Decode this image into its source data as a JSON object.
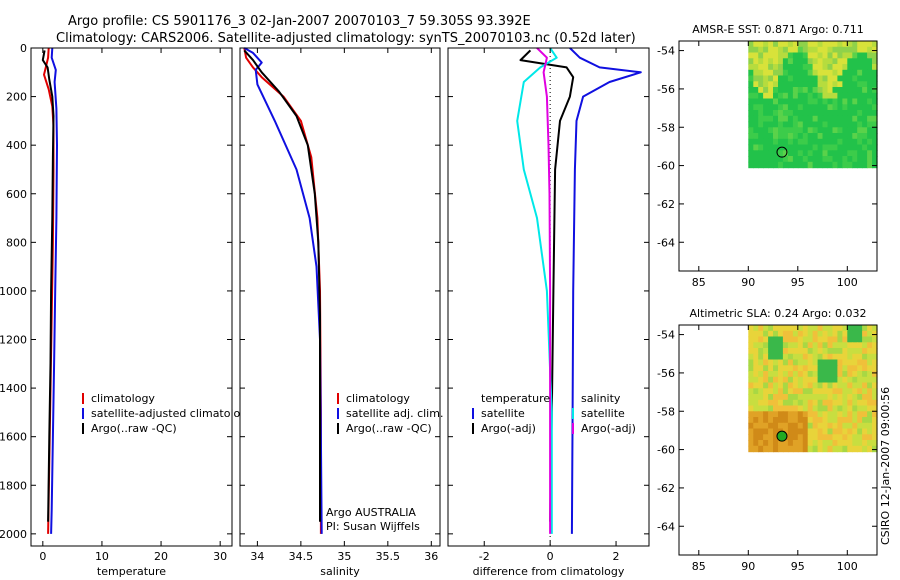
{
  "figure": {
    "title_line1": "Argo profile: CS 5901176_3 02-Jan-2007 20070103_7 59.305S 93.392E",
    "title_line2": "Climatology: CARS2006. Satellite-adjusted climatology: synTS_20070103.nc (0.52d later)",
    "credit": "CSIRO 12-Jan-2007 09:00:56"
  },
  "colors": {
    "climatology": "#e00000",
    "satellite": "#1010e0",
    "argo": "#000000",
    "sat_diff": "#00e8e8",
    "argo_diff": "#e000e0"
  },
  "chart_data": [
    {
      "id": "temperature",
      "type": "line",
      "xlabel": "temperature",
      "ylabel": "",
      "xlim": [
        -2,
        32
      ],
      "ylim": [
        2050,
        0
      ],
      "xticks": [
        0,
        10,
        20,
        30
      ],
      "yticks": [
        0,
        200,
        400,
        600,
        800,
        1000,
        1200,
        1400,
        1600,
        1800,
        2000
      ],
      "legend": {
        "position": "lower-right",
        "labels": [
          "climatology",
          "satellite-adjusted climatology",
          "Argo(..raw -QC)"
        ]
      },
      "series": [
        {
          "name": "climatology",
          "color_key": "climatology",
          "points": [
            [
              1.0,
              0
            ],
            [
              0.9,
              40
            ],
            [
              0.5,
              80
            ],
            [
              0.2,
              110
            ],
            [
              1.0,
              170
            ],
            [
              1.6,
              240
            ],
            [
              1.8,
              320
            ],
            [
              1.8,
              500
            ],
            [
              1.7,
              800
            ],
            [
              1.5,
              1100
            ],
            [
              1.3,
              1400
            ],
            [
              1.1,
              1700
            ],
            [
              0.9,
              2000
            ]
          ]
        },
        {
          "name": "satellite-adjusted climatology",
          "color_key": "satellite",
          "points": [
            [
              1.6,
              0
            ],
            [
              1.5,
              40
            ],
            [
              2.2,
              90
            ],
            [
              2.0,
              140
            ],
            [
              2.3,
              250
            ],
            [
              2.4,
              400
            ],
            [
              2.3,
              700
            ],
            [
              2.1,
              1000
            ],
            [
              1.9,
              1300
            ],
            [
              1.7,
              1600
            ],
            [
              1.5,
              1900
            ],
            [
              1.4,
              2000
            ]
          ]
        },
        {
          "name": "Argo(..raw -QC)",
          "color_key": "argo",
          "points": [
            [
              0.3,
              10
            ],
            [
              0.0,
              50
            ],
            [
              0.8,
              80
            ],
            [
              1.1,
              130
            ],
            [
              1.6,
              200
            ],
            [
              1.8,
              280
            ],
            [
              1.7,
              450
            ],
            [
              1.6,
              700
            ],
            [
              1.4,
              1000
            ],
            [
              1.3,
              1300
            ],
            [
              1.1,
              1600
            ],
            [
              0.9,
              1950
            ]
          ]
        }
      ]
    },
    {
      "id": "salinity",
      "type": "line",
      "xlabel": "salinity",
      "ylabel": "",
      "xlim": [
        33.8,
        36.1
      ],
      "ylim": [
        2050,
        0
      ],
      "xticks": [
        34,
        34.5,
        35,
        35.5,
        36
      ],
      "yticks": [
        0,
        200,
        400,
        600,
        800,
        1000,
        1200,
        1400,
        1600,
        1800,
        2000
      ],
      "legend": {
        "position": "lower-right",
        "labels": [
          "climatology",
          "satellite adj. clim.",
          "Argo(..raw -QC)"
        ]
      },
      "annotation": [
        "Argo AUSTRALIA",
        "PI: Susan Wijffels"
      ],
      "series": [
        {
          "name": "climatology",
          "color_key": "climatology",
          "points": [
            [
              33.85,
              0
            ],
            [
              33.87,
              40
            ],
            [
              33.95,
              80
            ],
            [
              34.05,
              120
            ],
            [
              34.3,
              200
            ],
            [
              34.5,
              300
            ],
            [
              34.62,
              450
            ],
            [
              34.69,
              700
            ],
            [
              34.72,
              1000
            ],
            [
              34.73,
              1500
            ],
            [
              34.73,
              2000
            ]
          ]
        },
        {
          "name": "satellite adj. clim.",
          "color_key": "satellite",
          "points": [
            [
              33.85,
              0
            ],
            [
              33.95,
              20
            ],
            [
              34.05,
              60
            ],
            [
              33.98,
              90
            ],
            [
              34.0,
              150
            ],
            [
              34.2,
              300
            ],
            [
              34.45,
              500
            ],
            [
              34.6,
              700
            ],
            [
              34.68,
              900
            ],
            [
              34.72,
              1200
            ],
            [
              34.73,
              1600
            ],
            [
              34.74,
              2000
            ]
          ]
        },
        {
          "name": "Argo(..raw -QC)",
          "color_key": "argo",
          "points": [
            [
              33.85,
              10
            ],
            [
              33.95,
              50
            ],
            [
              34.05,
              100
            ],
            [
              34.25,
              180
            ],
            [
              34.45,
              280
            ],
            [
              34.58,
              400
            ],
            [
              34.66,
              600
            ],
            [
              34.7,
              800
            ],
            [
              34.72,
              1100
            ],
            [
              34.72,
              1500
            ],
            [
              34.72,
              1950
            ]
          ]
        }
      ]
    },
    {
      "id": "difference",
      "type": "line",
      "xlabel": "difference from climatology",
      "ylabel": "",
      "xlim": [
        -3.1,
        3.0
      ],
      "ylim": [
        2050,
        0
      ],
      "xticks": [
        -2,
        0,
        2
      ],
      "yticks": [
        0,
        200,
        400,
        600,
        800,
        1000,
        1200,
        1400,
        1600,
        1800,
        2000
      ],
      "legend": {
        "position": "lower-center",
        "temperature_header": "temperature",
        "salinity_header": "salinity",
        "labels": [
          "satellite",
          "Argo(-adj)"
        ]
      },
      "series": [
        {
          "name": "temperature satellite",
          "color_key": "satellite",
          "points": [
            [
              0.6,
              0
            ],
            [
              0.9,
              40
            ],
            [
              1.5,
              80
            ],
            [
              2.75,
              100
            ],
            [
              1.8,
              140
            ],
            [
              1.0,
              200
            ],
            [
              0.8,
              300
            ],
            [
              0.75,
              500
            ],
            [
              0.7,
              1000
            ],
            [
              0.68,
              1500
            ],
            [
              0.66,
              2000
            ]
          ]
        },
        {
          "name": "temperature Argo(-adj)",
          "color_key": "argo",
          "points": [
            [
              -0.6,
              10
            ],
            [
              -0.9,
              50
            ],
            [
              0.5,
              80
            ],
            [
              0.7,
              120
            ],
            [
              0.6,
              200
            ],
            [
              0.3,
              300
            ],
            [
              0.15,
              500
            ],
            [
              0.1,
              1000
            ],
            [
              0.05,
              1500
            ],
            [
              0.0,
              1950
            ]
          ]
        },
        {
          "name": "salinity satellite",
          "color_key": "sat_diff",
          "points": [
            [
              0.0,
              0
            ],
            [
              0.2,
              40
            ],
            [
              -0.3,
              80
            ],
            [
              -0.8,
              140
            ],
            [
              -1.0,
              300
            ],
            [
              -0.8,
              500
            ],
            [
              -0.4,
              700
            ],
            [
              -0.1,
              1000
            ],
            [
              0.05,
              1500
            ],
            [
              0.05,
              2000
            ]
          ]
        },
        {
          "name": "salinity Argo(-adj)",
          "color_key": "argo_diff",
          "points": [
            [
              -0.4,
              0
            ],
            [
              -0.1,
              40
            ],
            [
              -0.2,
              100
            ],
            [
              -0.1,
              200
            ],
            [
              -0.05,
              400
            ],
            [
              -0.02,
              600
            ],
            [
              0.0,
              1000
            ],
            [
              0.0,
              2000
            ]
          ]
        }
      ]
    },
    {
      "id": "sst_map",
      "type": "heatmap",
      "title": "AMSR-E SST: 0.871 Argo: 0.711",
      "xlim": [
        83,
        103
      ],
      "ylim": [
        -65.5,
        -53.5
      ],
      "xticks": [
        85,
        90,
        95,
        100
      ],
      "yticks": [
        -54,
        -56,
        -58,
        -60,
        -62,
        -64
      ],
      "data_extent": {
        "lon": [
          90,
          103
        ],
        "lat": [
          -60.1,
          -53.5
        ]
      },
      "marker": {
        "lon": 93.4,
        "lat": -59.3,
        "color": "none"
      }
    },
    {
      "id": "sla_map",
      "type": "heatmap",
      "title": "Altimetric SLA: 0.24 Argo: 0.032",
      "xlim": [
        83,
        103
      ],
      "ylim": [
        -65.5,
        -53.5
      ],
      "xticks": [
        85,
        90,
        95,
        100
      ],
      "yticks": [
        -54,
        -56,
        -58,
        -60,
        -62,
        -64
      ],
      "data_extent": {
        "lon": [
          90,
          103
        ],
        "lat": [
          -60.1,
          -53.5
        ]
      },
      "marker": {
        "lon": 93.4,
        "lat": -59.3,
        "color": "#22aa22"
      }
    }
  ]
}
